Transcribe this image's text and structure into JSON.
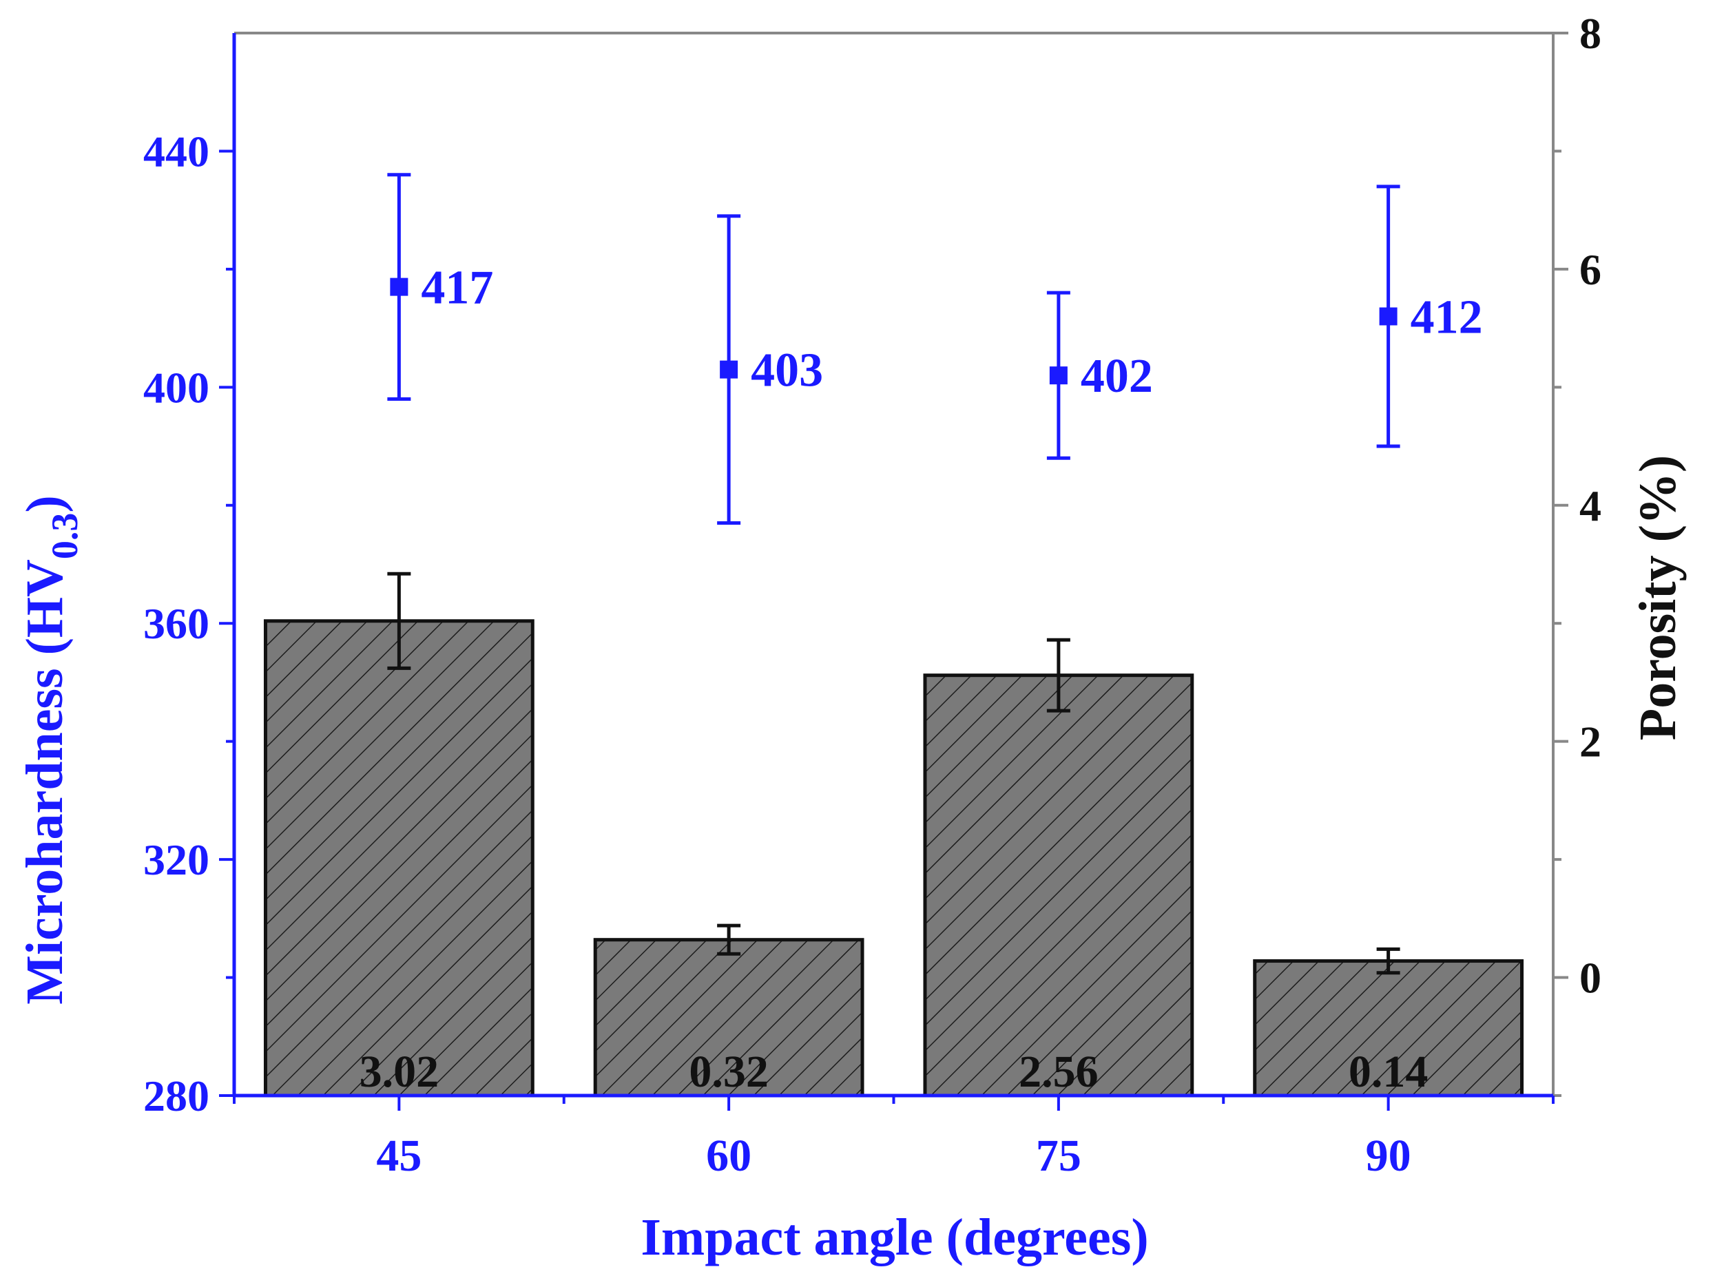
{
  "chart_data": {
    "type": "bar",
    "categories": [
      "45",
      "60",
      "75",
      "90"
    ],
    "xlabel": "Impact angle (degrees)",
    "y_left": {
      "label_main": "Microhardness (HV",
      "label_sub": "0.3",
      "label_close": ")",
      "range": [
        280,
        460
      ],
      "ticks": [
        "280",
        "320",
        "360",
        "400",
        "440"
      ],
      "color": "#1a1aff"
    },
    "y_right": {
      "label": "Porosity (%)",
      "range": [
        -1,
        8
      ],
      "ticks": [
        "0",
        "2",
        "4",
        "6",
        "8"
      ],
      "color": "#111111"
    },
    "series": [
      {
        "name": "Porosity",
        "kind": "bar",
        "axis": "right",
        "values": [
          3.02,
          0.32,
          2.56,
          0.14
        ],
        "labels": [
          "3.02",
          "0.32",
          "2.56",
          "0.14"
        ],
        "err": [
          0.4,
          0.12,
          0.3,
          0.1
        ],
        "fill": "#7a7a7a",
        "hatch": "diagonal"
      },
      {
        "name": "Microhardness",
        "kind": "scatter",
        "axis": "left",
        "values": [
          417,
          403,
          402,
          412
        ],
        "labels": [
          "417",
          "403",
          "402",
          "412"
        ],
        "err_upper": [
          436,
          429,
          416,
          434
        ],
        "err_lower": [
          398,
          377,
          388,
          390
        ],
        "color": "#1a1aff"
      }
    ]
  }
}
